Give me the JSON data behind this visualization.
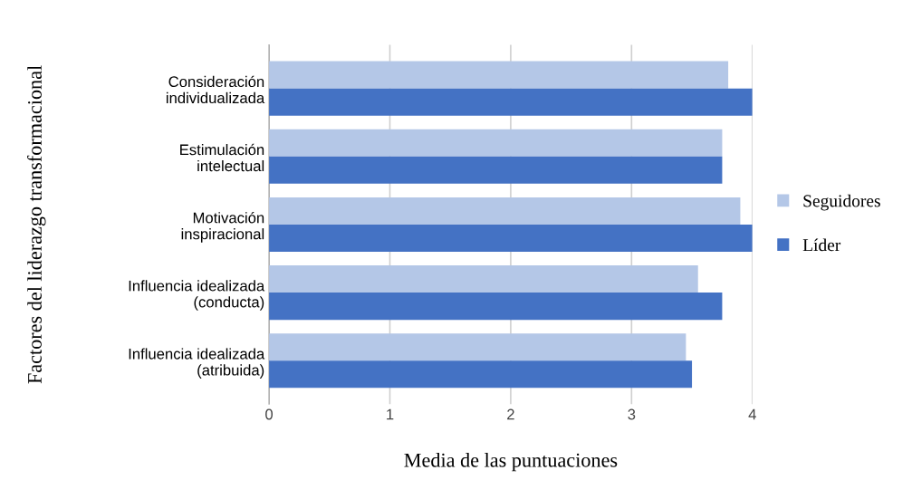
{
  "chart_data": {
    "type": "bar",
    "orientation": "horizontal",
    "xlabel": "Media de las puntuaciones",
    "ylabel": "Factores del liderazgo transformacional",
    "categories": [
      "Consideración\nindividualizada",
      "Estimulación\nintelectual",
      "Motivación\ninspiracional",
      "Influencia idealizada\n(conducta)",
      "Influencia idealizada\n(atribuida)"
    ],
    "series": [
      {
        "name": "Seguidores",
        "color": "#b4c7e7",
        "values": [
          3.8,
          3.75,
          3.9,
          3.55,
          3.45
        ]
      },
      {
        "name": "Líder",
        "color": "#4472c4",
        "values": [
          4,
          3.75,
          4,
          3.75,
          3.5
        ]
      }
    ],
    "xlim": [
      0,
      4
    ],
    "xticks": [
      0,
      1,
      2,
      3,
      4
    ],
    "grid": "x",
    "legend": "right"
  }
}
